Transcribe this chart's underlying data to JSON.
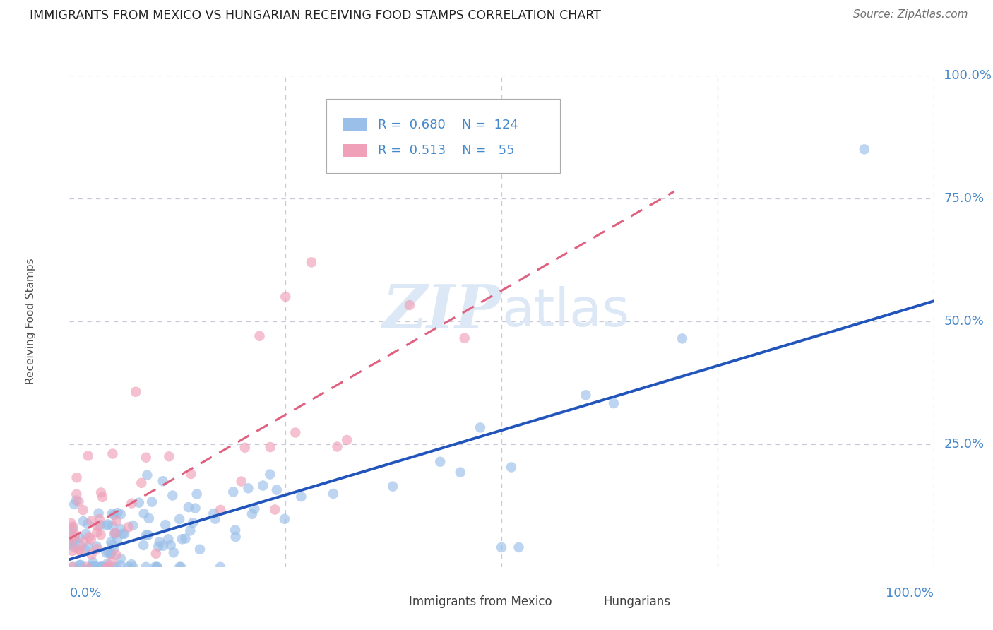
{
  "title": "IMMIGRANTS FROM MEXICO VS HUNGARIAN RECEIVING FOOD STAMPS CORRELATION CHART",
  "source": "Source: ZipAtlas.com",
  "ylabel": "Receiving Food Stamps",
  "mexico_color": "#9abfe8",
  "hungary_color": "#f0a0b8",
  "mexico_line_color": "#2255bb",
  "hungary_line_color": "#e06080",
  "background_color": "#ffffff",
  "grid_color": "#c8c8d8",
  "title_color": "#222222",
  "axis_label_color": "#4488cc",
  "watermark_color": "#dce8f5",
  "R_mexico": 0.68,
  "N_mexico": 124,
  "R_hungary": 0.513,
  "N_hungary": 55
}
